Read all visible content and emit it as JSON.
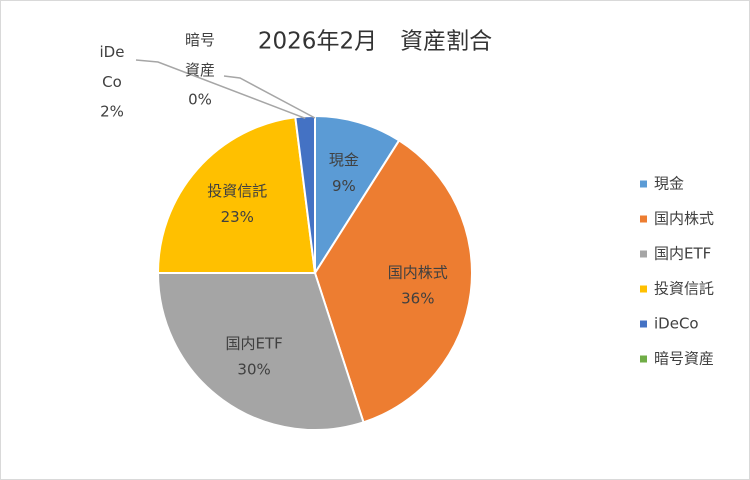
{
  "chart_data": {
    "type": "pie",
    "title": "2026年2月　資産割合",
    "categories": [
      "現金",
      "国内株式",
      "国内ETF",
      "投資信託",
      "iDeCo",
      "暗号資産"
    ],
    "values": [
      9,
      36,
      30,
      23,
      2,
      0
    ],
    "value_labels": [
      "9%",
      "36%",
      "30%",
      "23%",
      "2%",
      "0%"
    ],
    "colors": [
      "#5b9bd5",
      "#ed7d31",
      "#a5a5a5",
      "#ffc000",
      "#4472c4",
      "#70ad47"
    ],
    "legend": "right"
  }
}
